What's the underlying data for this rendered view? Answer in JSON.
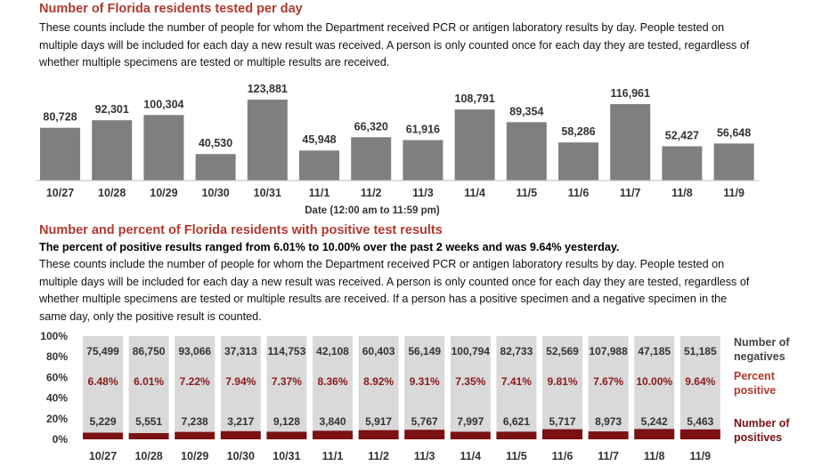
{
  "chart1": {
    "title": "Number of Florida residents tested per day",
    "description": "These counts include the number of people for whom the Department received PCR or antigen laboratory results by day. People tested on multiple days will be included for each day a new result was received. A person is only counted once for each day they are tested, regardless of whether multiple specimens are tested or multiple results are received.",
    "xlabel": "Date (12:00 am to 11:59 pm)"
  },
  "chart2": {
    "title": "Number and percent of Florida residents with positive test results",
    "summary": "The percent of positive results ranged from 6.01% to 10.00% over the past 2 weeks and was 9.64% yesterday.",
    "description": "These counts include the number of people for whom the Department received PCR or antigen laboratory results by day. People tested on multiple days will be included for each day a new result was received. A person is only counted once for each day they are tested, regardless of whether multiple specimens are tested or multiple results are received. If a person has a positive specimen and a negative specimen in the same day, only the positive result is counted.",
    "legend": {
      "negatives": [
        "Number of",
        "negatives"
      ],
      "percent": [
        "Percent",
        "positive"
      ],
      "positives": [
        "Number of",
        "positives"
      ]
    }
  },
  "colors": {
    "gray_bar": "#7f7f7f",
    "neg_bar": "#d9d9d9",
    "pos_bar": "#7b1113",
    "title_red": "#b03a2e"
  },
  "chart_data": [
    {
      "type": "bar",
      "title": "Number of Florida residents tested per day",
      "xlabel": "Date (12:00 am to 11:59 pm)",
      "categories": [
        "10/27",
        "10/28",
        "10/29",
        "10/30",
        "10/31",
        "11/1",
        "11/2",
        "11/3",
        "11/4",
        "11/5",
        "11/6",
        "11/7",
        "11/8",
        "11/9"
      ],
      "values": [
        80728,
        92301,
        100304,
        40530,
        123881,
        45948,
        66320,
        61916,
        108791,
        89354,
        58286,
        116961,
        52427,
        56648
      ],
      "value_labels": [
        "80,728",
        "92,301",
        "100,304",
        "40,530",
        "123,881",
        "45,948",
        "66,320",
        "61,916",
        "108,791",
        "89,354",
        "58,286",
        "116,961",
        "52,427",
        "56,648"
      ],
      "ylim": [
        0,
        140000
      ]
    },
    {
      "type": "bar",
      "title": "Number and percent of Florida residents with positive test results",
      "stacked": "percent",
      "categories": [
        "10/27",
        "10/28",
        "10/29",
        "10/30",
        "10/31",
        "11/1",
        "11/2",
        "11/3",
        "11/4",
        "11/5",
        "11/6",
        "11/7",
        "11/8",
        "11/9"
      ],
      "y_ticks": [
        "0%",
        "20%",
        "40%",
        "60%",
        "80%",
        "100%"
      ],
      "series": [
        {
          "name": "Number of positives",
          "values": [
            5229,
            5551,
            7238,
            3217,
            9128,
            3840,
            5917,
            5767,
            7997,
            6621,
            5717,
            8973,
            5242,
            5463
          ],
          "labels": [
            "5,229",
            "5,551",
            "7,238",
            "3,217",
            "9,128",
            "3,840",
            "5,917",
            "5,767",
            "7,997",
            "6,621",
            "5,717",
            "8,973",
            "5,242",
            "5,463"
          ]
        },
        {
          "name": "Number of negatives",
          "values": [
            75499,
            86750,
            93066,
            37313,
            114753,
            42108,
            60403,
            56149,
            100794,
            82733,
            52569,
            107988,
            47185,
            51185
          ],
          "labels": [
            "75,499",
            "86,750",
            "93,066",
            "37,313",
            "114,753",
            "42,108",
            "60,403",
            "56,149",
            "100,794",
            "82,733",
            "52,569",
            "107,988",
            "47,185",
            "51,185"
          ]
        }
      ],
      "percent_positive": [
        6.48,
        6.01,
        7.22,
        7.94,
        7.37,
        8.36,
        8.92,
        9.31,
        7.35,
        7.41,
        9.81,
        7.67,
        10.0,
        9.64
      ],
      "percent_labels": [
        "6.48%",
        "6.01%",
        "7.22%",
        "7.94%",
        "7.37%",
        "8.36%",
        "8.92%",
        "9.31%",
        "7.35%",
        "7.41%",
        "9.81%",
        "7.67%",
        "10.00%",
        "9.64%"
      ],
      "ylim": [
        0,
        100
      ]
    }
  ]
}
